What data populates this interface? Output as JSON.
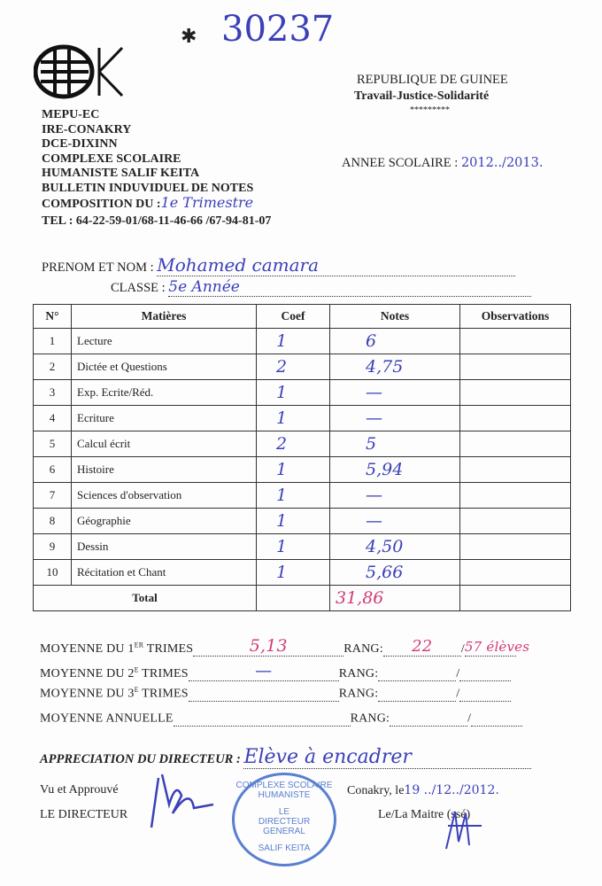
{
  "serial_number": "30237",
  "logo_text": "CSHSK",
  "header_left": [
    "MEPU-EC",
    "IRE-CONAKRY",
    "DCE-DIXINN",
    "COMPLEXE SCOLAIRE",
    "HUMANISTE SALIF KEITA",
    "BULLETIN INDUVIDUEL DE NOTES"
  ],
  "composition_label": "COMPOSITION DU :",
  "composition_value": "1e Trimestre",
  "tel": "TEL : 64-22-59-01/68-11-46-66 /67-94-81-07",
  "republic": "REPUBLIQUE DE GUINEE",
  "motto": "Travail-Justice-Solidarité",
  "stars": "*********",
  "school_year_label": "ANNEE SCOLAIRE : ",
  "school_year_value": "2012../2013.",
  "name_label": "PRENOM ET NOM :",
  "name_value": "Mohamed camara",
  "class_label": "CLASSE :",
  "class_value": "5e Année",
  "table": {
    "headers": [
      "N°",
      "Matières",
      "Coef",
      "Notes",
      "Observations"
    ],
    "rows": [
      {
        "n": "1",
        "subject": "Lecture",
        "coef": "1",
        "note": "6",
        "obs": ""
      },
      {
        "n": "2",
        "subject": "Dictée et Questions",
        "coef": "2",
        "note": "4,75",
        "obs": ""
      },
      {
        "n": "3",
        "subject": "Exp. Ecrite/Réd.",
        "coef": "1",
        "note": "—",
        "obs": ""
      },
      {
        "n": "4",
        "subject": "Ecriture",
        "coef": "1",
        "note": "—",
        "obs": ""
      },
      {
        "n": "5",
        "subject": "Calcul écrit",
        "coef": "2",
        "note": "5",
        "obs": ""
      },
      {
        "n": "6",
        "subject": "Histoire",
        "coef": "1",
        "note": "5,94",
        "obs": ""
      },
      {
        "n": "7",
        "subject": "Sciences d'observation",
        "coef": "1",
        "note": "—",
        "obs": ""
      },
      {
        "n": "8",
        "subject": "Géographie",
        "coef": "1",
        "note": "—",
        "obs": ""
      },
      {
        "n": "9",
        "subject": "Dessin",
        "coef": "1",
        "note": "4,50",
        "obs": ""
      },
      {
        "n": "10",
        "subject": "Récitation et Chant",
        "coef": "1",
        "note": "5,66",
        "obs": ""
      }
    ],
    "total_label": "Total",
    "total_value": "31,86"
  },
  "averages": [
    {
      "label_a": "MOYENNE DU 1",
      "sup": "ER",
      "label_b": " TRIMES",
      "value": "5,13",
      "rang_label": "RANG:",
      "rang": "22",
      "out_of": "57 élèves"
    },
    {
      "label_a": "MOYENNE DU 2",
      "sup": "E",
      "label_b": " TRIMES",
      "value": "—",
      "rang_label": "RANG:",
      "rang": "",
      "out_of": ""
    },
    {
      "label_a": "MOYENNE DU 3",
      "sup": "E",
      "label_b": " TRIMES",
      "value": "",
      "rang_label": "RANG:",
      "rang": "",
      "out_of": ""
    },
    {
      "label_a": "MOYENNE ANNUELLE",
      "sup": "",
      "label_b": "",
      "value": "",
      "rang_label": "RANG:",
      "rang": "",
      "out_of": ""
    }
  ],
  "appreciation_label": "APPRECIATION DU DIRECTEUR :",
  "appreciation_value": "Elève à encadrer",
  "vu_approuve": "Vu et Approuvé",
  "le_directeur": "LE DIRECTEUR",
  "date_label": "Conakry, le",
  "date_value": "19 ../12../2012.",
  "maitre_label": "Le/La Maitre (ssé)",
  "stamp_text": [
    "COMPLEXE SCOLAIRE HUMANISTE",
    "LE",
    "DIRECTEUR",
    "GENERAL",
    "SALIF KEITA"
  ],
  "colors": {
    "ink_blue": "#3b40b8",
    "ink_pink": "#d23a78",
    "stamp": "#5a7fd0"
  }
}
